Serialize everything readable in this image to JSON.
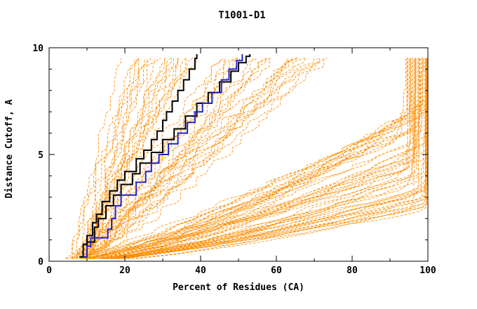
{
  "title": "T1001-D1",
  "colors": {
    "background": "#FFFFFF",
    "axis": "#000000",
    "ensemble": "#FF8C00",
    "black": "#000000",
    "blue": "#2222CC"
  },
  "chart_data": {
    "type": "line",
    "title": "T1001-D1",
    "xlabel": "Percent of Residues (CA)",
    "ylabel": "Distance Cutoff, A",
    "xlim": [
      0,
      100
    ],
    "ylim": [
      0,
      10
    ],
    "grid": false,
    "legend": null,
    "x_major_ticks": [
      0,
      20,
      40,
      60,
      80,
      100
    ],
    "x_minor_step": 10,
    "y_major_ticks": [
      0,
      5,
      10
    ],
    "y_minor_step": 1,
    "ensemble_seed": 42,
    "ensemble_groups": [
      {
        "name": "steep-poor-models",
        "kind": "open",
        "count": 22,
        "x0": [
          4,
          10
        ],
        "xtop": [
          18,
          40
        ],
        "p": [
          0.85,
          1.25
        ],
        "jitter": 3.0
      },
      {
        "name": "mid-models",
        "kind": "open",
        "count": 25,
        "x0": [
          5,
          11
        ],
        "xtop": [
          40,
          78
        ],
        "p": [
          0.75,
          1.15
        ],
        "jitter": 3.5
      },
      {
        "name": "good-models",
        "kind": "cap",
        "count": 40,
        "x0": [
          5,
          12
        ],
        "xmax": [
          93,
          100
        ],
        "y100": [
          3.2,
          7.5
        ],
        "p": [
          0.6,
          0.95
        ],
        "jitter": 3.0
      },
      {
        "name": "very-good-models",
        "kind": "cap",
        "count": 14,
        "x0": [
          5,
          10
        ],
        "xmax": [
          96,
          100
        ],
        "y100": [
          2.3,
          3.4
        ],
        "p": [
          0.6,
          0.85
        ],
        "jitter": 2.5
      }
    ],
    "highlights": [
      {
        "name": "model-black-1",
        "color_key": "black",
        "width": 2,
        "points": [
          [
            8,
            0.2
          ],
          [
            9,
            0.8
          ],
          [
            10,
            1.2
          ],
          [
            11.5,
            1.8
          ],
          [
            12.5,
            2.2
          ],
          [
            14,
            2.8
          ],
          [
            16,
            3.3
          ],
          [
            18,
            3.8
          ],
          [
            20,
            4.2
          ],
          [
            23,
            4.8
          ],
          [
            25,
            5.2
          ],
          [
            27,
            5.7
          ],
          [
            28.5,
            6.1
          ],
          [
            30,
            6.6
          ],
          [
            31,
            7.0
          ],
          [
            32.5,
            7.5
          ],
          [
            34,
            8.0
          ],
          [
            35.5,
            8.5
          ],
          [
            37,
            9.0
          ],
          [
            38.5,
            9.5
          ],
          [
            39,
            9.7
          ]
        ]
      },
      {
        "name": "model-black-2",
        "color_key": "black",
        "width": 2,
        "points": [
          [
            8.5,
            0.2
          ],
          [
            10,
            0.9
          ],
          [
            12,
            1.6
          ],
          [
            13,
            2.0
          ],
          [
            15,
            2.6
          ],
          [
            17,
            3.1
          ],
          [
            19,
            3.6
          ],
          [
            22,
            4.1
          ],
          [
            24,
            4.6
          ],
          [
            27,
            5.1
          ],
          [
            30,
            5.7
          ],
          [
            33,
            6.2
          ],
          [
            36,
            6.8
          ],
          [
            39,
            7.4
          ],
          [
            42,
            7.9
          ],
          [
            45,
            8.4
          ],
          [
            48,
            8.9
          ],
          [
            50,
            9.3
          ],
          [
            52,
            9.6
          ],
          [
            53,
            9.7
          ]
        ]
      },
      {
        "name": "model-blue",
        "color_key": "blue",
        "width": 2,
        "points": [
          [
            9,
            0.2
          ],
          [
            10,
            0.7
          ],
          [
            11,
            1.1
          ],
          [
            15.5,
            1.5
          ],
          [
            16.5,
            2.0
          ],
          [
            17.5,
            2.6
          ],
          [
            19,
            3.1
          ],
          [
            23,
            3.7
          ],
          [
            25.5,
            4.2
          ],
          [
            27,
            4.6
          ],
          [
            29,
            5.0
          ],
          [
            31.5,
            5.5
          ],
          [
            34,
            6.0
          ],
          [
            36.5,
            6.5
          ],
          [
            38.5,
            7.0
          ],
          [
            40.5,
            7.4
          ],
          [
            43,
            7.9
          ],
          [
            45.5,
            8.5
          ],
          [
            47.5,
            9.0
          ],
          [
            49.5,
            9.4
          ],
          [
            51,
            9.7
          ]
        ]
      }
    ]
  }
}
